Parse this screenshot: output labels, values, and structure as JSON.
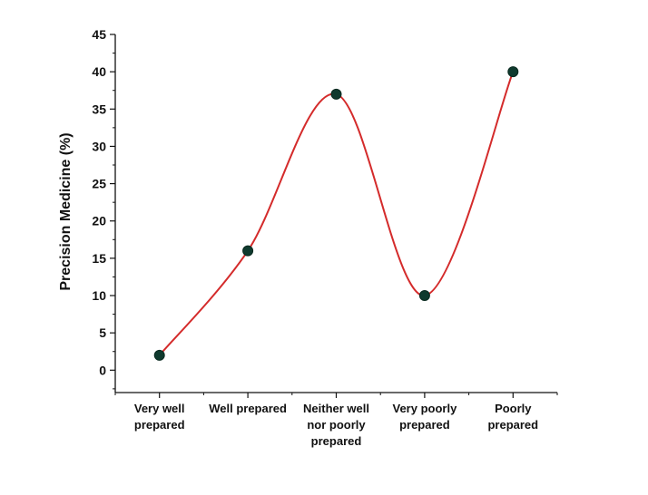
{
  "chart_data": {
    "type": "line",
    "title": "",
    "xlabel": "",
    "ylabel": "Precision Medicine (%)",
    "categories": [
      [
        "Very well",
        "prepared"
      ],
      [
        "Well prepared"
      ],
      [
        "Neither well",
        "nor poorly",
        "prepared"
      ],
      [
        "Very poorly",
        "prepared"
      ],
      [
        "Poorly",
        "prepared"
      ]
    ],
    "values": [
      2,
      16,
      37,
      10,
      40
    ],
    "ylim": [
      -3,
      45
    ],
    "yticks": [
      0,
      5,
      10,
      15,
      20,
      25,
      30,
      35,
      40,
      45
    ],
    "grid": false,
    "smooth": true,
    "line_color": "#d42b2b",
    "marker_color": "#0f3a2e"
  }
}
